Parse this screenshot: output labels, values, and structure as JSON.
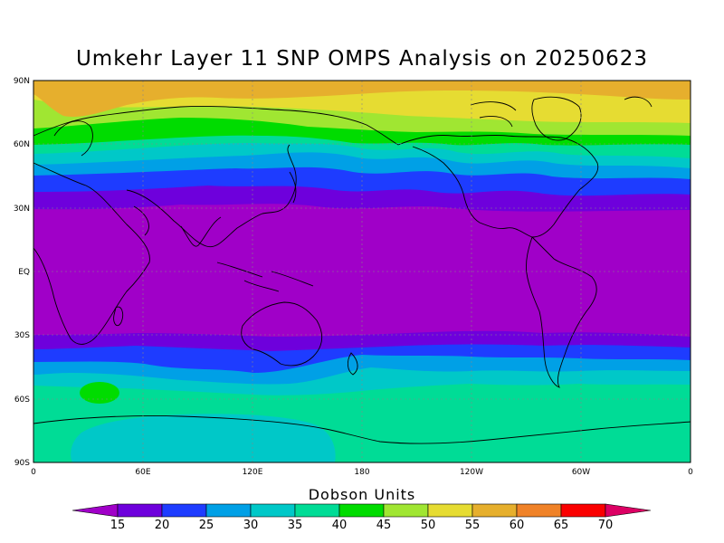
{
  "title": "Umkehr Layer 11 SNP OMPS Analysis on 20250623",
  "lat_labels": [
    "90N",
    "60N",
    "30N",
    "EQ",
    "30S",
    "60S",
    "90S"
  ],
  "lon_labels": [
    "0",
    "60E",
    "120E",
    "180",
    "120W",
    "60W",
    "0"
  ],
  "colorbar": {
    "title": "Dobson Units",
    "levels": [
      "15",
      "20",
      "25",
      "30",
      "35",
      "40",
      "45",
      "50",
      "55",
      "60",
      "65",
      "70"
    ],
    "colors": [
      "#a000c8",
      "#6e00dc",
      "#1e3cff",
      "#00a0e6",
      "#00c8c8",
      "#00dc96",
      "#00dc00",
      "#a0e632",
      "#e6dc32",
      "#e6af2d",
      "#f08228",
      "#fa0000",
      "#dc0064"
    ]
  },
  "chart_data": {
    "type": "heatmap",
    "title": "Umkehr Layer 11 SNP OMPS Analysis on 20250623",
    "colorbar_label": "Dobson Units",
    "latitude_range": [
      "90S",
      "90N"
    ],
    "longitude_range": [
      "0",
      "0"
    ],
    "contour_levels": [
      15,
      20,
      25,
      30,
      35,
      40,
      45,
      50,
      55,
      60,
      65,
      70
    ],
    "approximate_zonal_values": {
      "90N": 57,
      "75N": 52,
      "60N": 43,
      "50N": 33,
      "40N": 25,
      "30N": 15,
      "EQ": 12,
      "30S": 15,
      "40S": 25,
      "50S": 32,
      "60S": 37,
      "75S": 37,
      "90S": 37
    }
  }
}
